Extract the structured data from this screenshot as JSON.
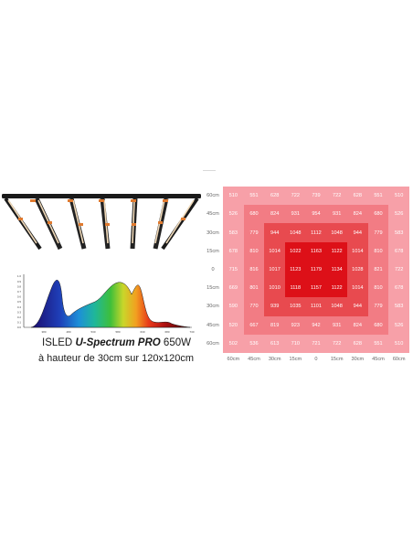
{
  "caption": {
    "line1_prefix": "ISLED ",
    "line1_brand": "U-Spectrum PRO",
    "line1_suffix": " 650W",
    "line2": "à hauteur de 30cm sur 120x120cm"
  },
  "spectrum": {
    "y_ticks": [
      "1.0",
      "0.9",
      "0.8",
      "0.7",
      "0.6",
      "0.5",
      "0.4",
      "0.3",
      "0.2",
      "0.1",
      "0.0"
    ],
    "x_ticks": [
      "380",
      "480",
      "530",
      "580",
      "630",
      "680",
      "730"
    ]
  },
  "heatmap": {
    "y_labels": [
      "60cm",
      "45cm",
      "30cm",
      "15cm",
      "0",
      "15cm",
      "30cm",
      "45cm",
      "60cm"
    ],
    "x_labels": [
      "60cm",
      "45cm",
      "30cm",
      "15cm",
      "0",
      "15cm",
      "30cm",
      "45cm",
      "60cm"
    ],
    "rows": [
      [
        "510",
        "551",
        "628",
        "722",
        "739",
        "722",
        "628",
        "551",
        "510"
      ],
      [
        "526",
        "680",
        "824",
        "931",
        "954",
        "931",
        "824",
        "680",
        "526"
      ],
      [
        "583",
        "779",
        "944",
        "1048",
        "1112",
        "1048",
        "944",
        "779",
        "583"
      ],
      [
        "678",
        "810",
        "1014",
        "1022",
        "1163",
        "1122",
        "1014",
        "810",
        "678"
      ],
      [
        "715",
        "816",
        "1017",
        "1123",
        "1179",
        "1134",
        "1028",
        "821",
        "722"
      ],
      [
        "669",
        "801",
        "1010",
        "1118",
        "1157",
        "1122",
        "1014",
        "810",
        "678"
      ],
      [
        "590",
        "770",
        "939",
        "1035",
        "1101",
        "1048",
        "944",
        "779",
        "583"
      ],
      [
        "520",
        "667",
        "819",
        "923",
        "942",
        "931",
        "824",
        "680",
        "526"
      ],
      [
        "502",
        "536",
        "613",
        "710",
        "721",
        "722",
        "628",
        "551",
        "510"
      ]
    ],
    "colors": {
      "outer": "#f7a0a8",
      "ring2": "#f27c84",
      "ring3": "#e84a4f",
      "core": "#dd1018"
    }
  }
}
